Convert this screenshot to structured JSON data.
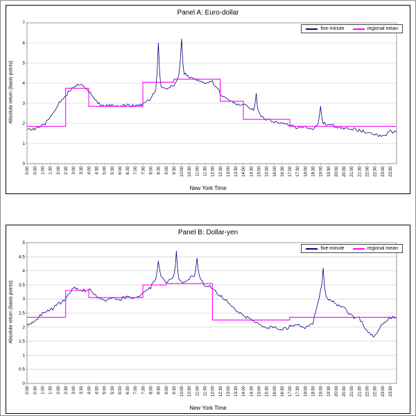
{
  "chart_data": [
    {
      "type": "line",
      "title": "Panel A: Euro-dollar",
      "xlabel": "New York Time",
      "ylabel": "Absolute return (basis points)",
      "ylim": [
        0,
        7
      ],
      "ystep": 1,
      "grid": "horizontal",
      "legend_position": "top-right",
      "x_tick_labels": [
        "0:00",
        "0:30",
        "1:00",
        "1:30",
        "2:00",
        "2:30",
        "3:00",
        "3:30",
        "4:00",
        "4:30",
        "5:00",
        "5:30",
        "6:00",
        "6:30",
        "7:00",
        "7:30",
        "8:00",
        "8:30",
        "9:00",
        "9:30",
        "10:00",
        "10:30",
        "11:00",
        "11:30",
        "12:00",
        "12:30",
        "13:00",
        "13:30",
        "14:00",
        "14:30",
        "15:00",
        "15:30",
        "16:00",
        "16:30",
        "17:00",
        "17:30",
        "18:00",
        "18:30",
        "19:00",
        "19:30",
        "20:00",
        "20:30",
        "21:00",
        "21:30",
        "22:00",
        "22:30",
        "23:00",
        "23:30"
      ],
      "series": [
        {
          "name": "five-minute",
          "color": "#000080",
          "x_minutes_step": 30,
          "values": [
            1.7,
            1.75,
            1.9,
            2.3,
            2.9,
            3.4,
            3.75,
            3.95,
            3.6,
            3.1,
            2.85,
            2.9,
            2.8,
            2.95,
            2.85,
            3.0,
            3.2,
            3.9,
            3.7,
            3.9,
            4.6,
            4.35,
            4.15,
            4.0,
            4.1,
            3.5,
            3.2,
            3.0,
            2.9,
            2.75,
            2.5,
            2.2,
            2.1,
            2.05,
            1.95,
            1.8,
            1.85,
            1.7,
            2.1,
            1.95,
            1.8,
            1.75,
            1.7,
            1.65,
            1.55,
            1.45,
            1.35,
            1.6
          ],
          "spikes": [
            {
              "minute": 510,
              "value": 6.0
            },
            {
              "minute": 600,
              "value": 6.2
            },
            {
              "minute": 890,
              "value": 3.5
            },
            {
              "minute": 1140,
              "value": 2.85
            }
          ]
        },
        {
          "name": "regional mean",
          "color": "#FF00FF",
          "type": "step",
          "segments": [
            {
              "from": 0,
              "to": 150,
              "value": 1.85
            },
            {
              "from": 150,
              "to": 240,
              "value": 3.75
            },
            {
              "from": 240,
              "to": 450,
              "value": 2.85
            },
            {
              "from": 450,
              "to": 570,
              "value": 4.05
            },
            {
              "from": 570,
              "to": 750,
              "value": 4.2
            },
            {
              "from": 750,
              "to": 840,
              "value": 3.1
            },
            {
              "from": 840,
              "to": 1020,
              "value": 2.2
            },
            {
              "from": 1020,
              "to": 1440,
              "value": 1.85
            }
          ]
        }
      ]
    },
    {
      "type": "line",
      "title": "Panel B: Dollar-yen",
      "xlabel": "New York Time",
      "ylabel": "Absolute return (basis points)",
      "ylim": [
        0,
        5
      ],
      "ystep": 0.5,
      "grid": "horizontal",
      "legend_position": "top-right",
      "x_tick_labels": [
        "0:00",
        "0:30",
        "1:00",
        "1:30",
        "2:00",
        "2:30",
        "3:00",
        "3:30",
        "4:00",
        "4:30",
        "5:00",
        "5:30",
        "6:00",
        "6:30",
        "7:00",
        "7:30",
        "8:00",
        "8:30",
        "9:00",
        "9:30",
        "10:00",
        "10:30",
        "11:00",
        "11:30",
        "12:00",
        "12:30",
        "13:00",
        "13:30",
        "14:00",
        "14:30",
        "15:00",
        "15:30",
        "16:00",
        "16:30",
        "17:00",
        "17:30",
        "18:00",
        "18:30",
        "19:00",
        "19:30",
        "20:00",
        "20:30",
        "21:00",
        "21:30",
        "22:00",
        "22:30",
        "23:00",
        "23:30"
      ],
      "series": [
        {
          "name": "five-minute",
          "color": "#000080",
          "x_minutes_step": 30,
          "values": [
            2.1,
            2.2,
            2.5,
            2.6,
            2.8,
            3.0,
            3.4,
            3.3,
            3.35,
            3.1,
            2.9,
            3.0,
            2.95,
            3.1,
            3.0,
            3.2,
            3.4,
            3.9,
            3.6,
            3.8,
            3.6,
            3.7,
            3.9,
            3.5,
            3.4,
            3.1,
            2.9,
            2.6,
            2.4,
            2.3,
            2.1,
            1.95,
            2.0,
            1.9,
            2.0,
            2.1,
            1.95,
            2.1,
            3.3,
            3.0,
            2.8,
            2.7,
            2.4,
            2.3,
            1.9,
            1.65,
            2.1,
            2.35
          ],
          "spikes": [
            {
              "minute": 510,
              "value": 4.35
            },
            {
              "minute": 580,
              "value": 4.7
            },
            {
              "minute": 660,
              "value": 4.45
            },
            {
              "minute": 1150,
              "value": 4.1
            }
          ]
        },
        {
          "name": "regional mean",
          "color": "#FF00FF",
          "type": "step",
          "segments": [
            {
              "from": 0,
              "to": 150,
              "value": 2.35
            },
            {
              "from": 150,
              "to": 240,
              "value": 3.3
            },
            {
              "from": 240,
              "to": 450,
              "value": 3.05
            },
            {
              "from": 450,
              "to": 540,
              "value": 3.5
            },
            {
              "from": 540,
              "to": 720,
              "value": 3.55
            },
            {
              "from": 720,
              "to": 1020,
              "value": 2.25
            },
            {
              "from": 1020,
              "to": 1440,
              "value": 2.35
            }
          ]
        }
      ]
    }
  ]
}
